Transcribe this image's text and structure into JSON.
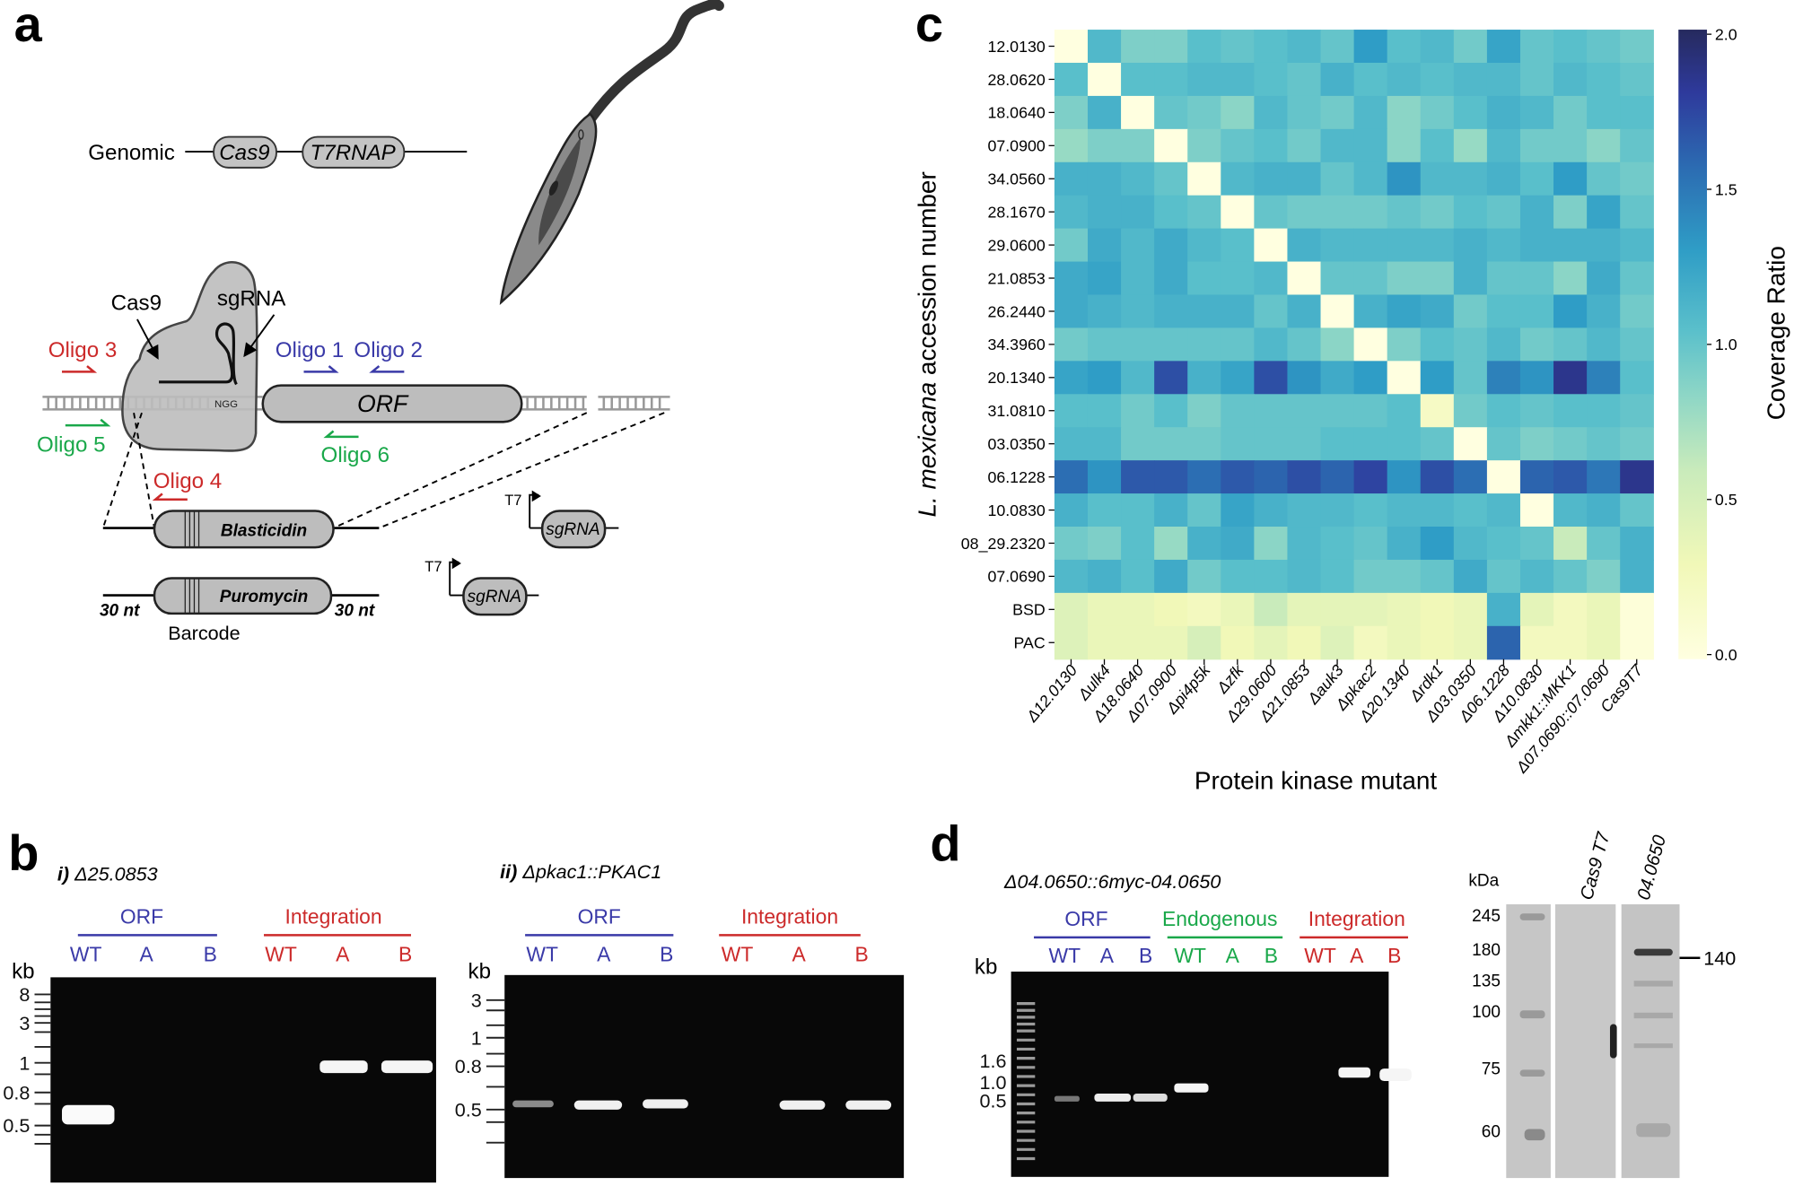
{
  "panel_a": {
    "label": "a",
    "genomic": "Genomic",
    "cas9_gene": "Cas9",
    "t7rnap_gene": "T7RNAP",
    "cas9_label": "Cas9",
    "sgrna_label": "sgRNA",
    "ngg": "NGG",
    "orf": "ORF",
    "oligos": {
      "o1": "Oligo 1",
      "o2": "Oligo 2",
      "o3": "Oligo 3",
      "o4": "Oligo 4",
      "o5": "Oligo 5",
      "o6": "Oligo 6"
    },
    "blasticidin": "Blasticidin",
    "puromycin": "Puromycin",
    "nt_left": "30 nt",
    "nt_right": "30 nt",
    "barcode": "Barcode",
    "t7_1": "T7",
    "t7_2": "T7",
    "sgrna_1": "sgRNA",
    "sgrna_2": "sgRNA"
  },
  "panel_b": {
    "label": "b",
    "gel1": {
      "title_prefix": "i)",
      "title": "Δ25.0853",
      "group1": "ORF",
      "group2": "Integration",
      "lanes": [
        "WT",
        "A",
        "B",
        "WT",
        "A",
        "B"
      ],
      "kb": "kb",
      "markers": [
        "8",
        "3",
        "1",
        "0.8",
        "0.5"
      ]
    },
    "gel2": {
      "title_prefix": "ii)",
      "title": "Δpkac1::PKAC1",
      "group1": "ORF",
      "group2": "Integration",
      "lanes": [
        "WT",
        "A",
        "B",
        "WT",
        "A",
        "B"
      ],
      "kb": "kb",
      "markers": [
        "3",
        "1",
        "0.8",
        "0.5"
      ]
    }
  },
  "panel_d": {
    "label": "d",
    "title": "Δ04.0650::6myc-04.0650",
    "group1": "ORF",
    "group2": "Endogenous",
    "group3": "Integration",
    "lanes": [
      "WT",
      "A",
      "B",
      "WT",
      "A",
      "B",
      "WT",
      "A",
      "B"
    ],
    "kb": "kb",
    "markers": [
      "1.6",
      "1.0",
      "0.5"
    ],
    "western": {
      "unit": "kDa",
      "markers": [
        "245",
        "180",
        "135",
        "100",
        "75",
        "60"
      ],
      "lane_labels": [
        "Cas9 T7",
        "04.0650"
      ],
      "band_label": "140"
    }
  },
  "colors": {
    "blue": "#3a3aa8",
    "red": "#cc2a2a",
    "green": "#1aa84a"
  },
  "chart_data": {
    "type": "heatmap",
    "panel_label": "c",
    "xlabel": "Protein kinase mutant",
    "ylabel_italic": "L. mexicana",
    "ylabel_rest": " accession number",
    "colorbar_label": "Coverage Ratio",
    "colorbar_ticks": [
      "2.0",
      "1.5",
      "1.0",
      "0.5",
      "0.0"
    ],
    "vmin": 0,
    "vmax": 2,
    "colormap": "YlGnBu",
    "columns": [
      "Δ12.0130",
      "Δulk4",
      "Δ18.0640",
      "Δ07.0900",
      "Δpi4p5k",
      "Δzfk",
      "Δ29.0600",
      "Δ21.0853",
      "Δauk3",
      "Δpkac2",
      "Δ20.1340",
      "Δrdk1",
      "Δ03.0350",
      "Δ06.1228",
      "Δ10.0830",
      "Δmkk1::MKK1",
      "Δ07.0690::07.0690",
      "Cas9T7"
    ],
    "rows": [
      "12.0130",
      "28.0620",
      "18.0640",
      "07.0900",
      "34.0560",
      "28.1670",
      "29.0600",
      "21.0853",
      "26.2440",
      "34.3960",
      "20.1340",
      "31.0810",
      "03.0350",
      "06.1228",
      "10.0830",
      "08_29.2320",
      "07.0690",
      "BSD",
      "PAC"
    ],
    "values": [
      [
        0,
        1.1,
        0.9,
        0.9,
        1.05,
        1.0,
        1.05,
        1.1,
        1.0,
        1.3,
        1.05,
        1.1,
        0.95,
        1.25,
        1.0,
        1.05,
        1.0,
        0.95
      ],
      [
        1.05,
        0,
        1.05,
        1.05,
        1.1,
        1.1,
        1.05,
        1.0,
        1.15,
        1.05,
        1.1,
        1.05,
        1.1,
        1.1,
        1.0,
        1.1,
        1.05,
        1.0
      ],
      [
        0.9,
        1.15,
        0,
        1.0,
        0.95,
        0.85,
        1.1,
        1.0,
        0.95,
        1.1,
        0.85,
        0.95,
        1.05,
        1.15,
        1.1,
        0.95,
        1.05,
        1.05
      ],
      [
        0.8,
        0.9,
        0.9,
        0,
        0.9,
        1.0,
        1.05,
        0.95,
        1.1,
        1.1,
        0.85,
        1.05,
        0.8,
        1.1,
        0.95,
        0.95,
        0.85,
        1.0
      ],
      [
        1.15,
        1.15,
        1.1,
        1.0,
        0,
        1.1,
        1.15,
        1.15,
        1.0,
        1.1,
        1.35,
        1.1,
        1.1,
        1.15,
        1.05,
        1.3,
        1.0,
        0.95
      ],
      [
        1.1,
        1.15,
        1.15,
        1.05,
        1.0,
        0,
        1.0,
        0.95,
        0.95,
        0.95,
        1.0,
        0.95,
        1.05,
        1.0,
        1.15,
        0.9,
        1.25,
        1.0
      ],
      [
        0.95,
        1.2,
        1.1,
        1.2,
        1.1,
        1.05,
        0,
        1.15,
        1.1,
        1.1,
        1.1,
        1.1,
        1.15,
        1.1,
        1.15,
        1.15,
        1.15,
        1.1
      ],
      [
        1.2,
        1.25,
        1.1,
        1.2,
        1.05,
        1.05,
        1.1,
        0,
        1.0,
        1.0,
        0.9,
        0.9,
        1.15,
        1.0,
        1.0,
        0.85,
        1.2,
        1.0
      ],
      [
        1.2,
        1.15,
        1.1,
        1.15,
        1.15,
        1.15,
        1.0,
        1.15,
        0,
        1.15,
        1.25,
        1.2,
        0.95,
        1.05,
        1.05,
        1.3,
        1.15,
        0.95
      ],
      [
        0.95,
        1.0,
        1.0,
        1.0,
        1.0,
        1.0,
        1.1,
        1.0,
        0.85,
        0,
        0.9,
        1.05,
        1.0,
        1.1,
        0.95,
        1.0,
        1.1,
        1.0
      ],
      [
        1.25,
        1.3,
        1.1,
        1.7,
        1.15,
        1.25,
        1.7,
        1.35,
        1.2,
        1.3,
        0,
        1.3,
        1.0,
        1.45,
        1.35,
        1.85,
        1.45,
        1.05
      ],
      [
        1.05,
        1.05,
        0.95,
        1.05,
        0.9,
        1.0,
        1.0,
        1.0,
        1.0,
        1.0,
        1.05,
        0.2,
        0.95,
        1.05,
        1.0,
        1.05,
        1.05,
        1.0
      ],
      [
        1.1,
        1.1,
        0.95,
        0.95,
        0.95,
        1.0,
        1.0,
        1.0,
        1.05,
        1.05,
        1.05,
        1.0,
        0,
        1.0,
        0.9,
        0.95,
        1.0,
        0.95
      ],
      [
        1.55,
        1.35,
        1.65,
        1.65,
        1.55,
        1.65,
        1.6,
        1.7,
        1.6,
        1.75,
        1.35,
        1.7,
        1.55,
        0,
        1.6,
        1.65,
        1.5,
        1.85
      ],
      [
        1.15,
        1.05,
        1.05,
        1.15,
        1.0,
        1.25,
        1.15,
        1.1,
        1.1,
        1.05,
        1.1,
        1.1,
        1.05,
        1.1,
        0,
        1.1,
        1.15,
        1.0
      ],
      [
        0.95,
        0.9,
        1.05,
        0.8,
        1.15,
        1.2,
        0.85,
        1.1,
        1.05,
        1.0,
        1.15,
        1.3,
        1.1,
        1.05,
        1.0,
        0.6,
        1.0,
        1.15
      ],
      [
        1.1,
        1.15,
        1.05,
        1.2,
        0.95,
        1.05,
        1.05,
        1.1,
        1.05,
        0.95,
        0.95,
        1.0,
        1.2,
        1.0,
        1.1,
        1.0,
        0.9,
        1.15
      ],
      [
        0.45,
        0.35,
        0.35,
        0.3,
        0.25,
        0.35,
        0.6,
        0.4,
        0.4,
        0.4,
        0.35,
        0.3,
        0.35,
        1.15,
        0.4,
        0.25,
        0.35,
        0.05
      ],
      [
        0.45,
        0.35,
        0.35,
        0.35,
        0.5,
        0.3,
        0.4,
        0.3,
        0.45,
        0.25,
        0.35,
        0.3,
        0.35,
        1.6,
        0.25,
        0.25,
        0.35,
        0.05
      ]
    ]
  }
}
